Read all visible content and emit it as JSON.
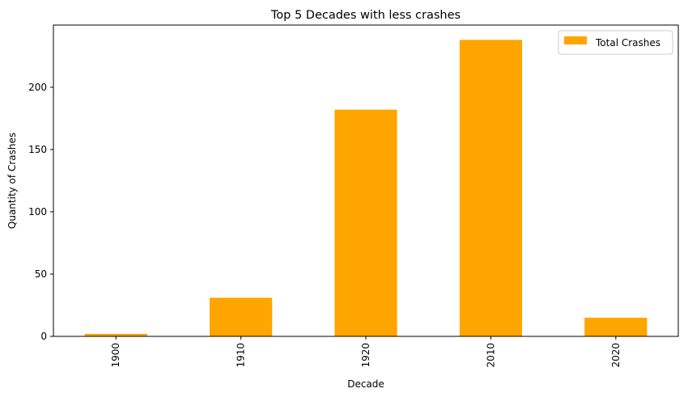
{
  "chart_data": {
    "type": "bar",
    "title": "Top 5 Decades with less crashes",
    "xlabel": "Decade",
    "ylabel": "Quantity of Crashes",
    "categories": [
      "1900",
      "1910",
      "1920",
      "2010",
      "2020"
    ],
    "series": [
      {
        "name": "Total Crashes",
        "values": [
          2,
          31,
          182,
          238,
          15
        ],
        "color": "#ffa500"
      }
    ],
    "ylim": [
      0,
      249.9
    ],
    "yticks": [
      0,
      50,
      100,
      150,
      200
    ],
    "grid": false,
    "legend_position": "top-right"
  }
}
